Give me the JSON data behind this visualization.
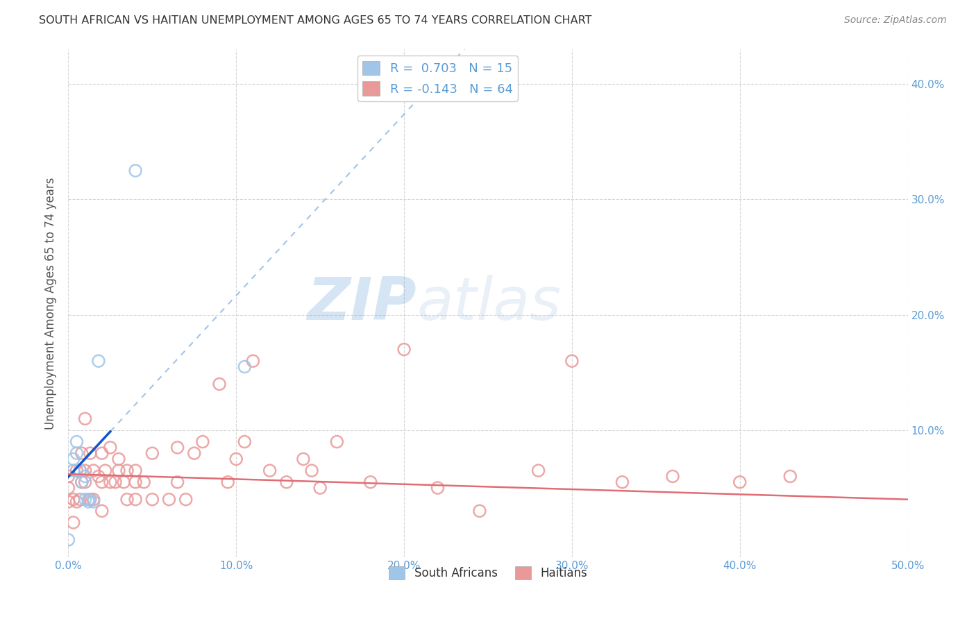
{
  "title": "SOUTH AFRICAN VS HAITIAN UNEMPLOYMENT AMONG AGES 65 TO 74 YEARS CORRELATION CHART",
  "source": "Source: ZipAtlas.com",
  "ylabel": "Unemployment Among Ages 65 to 74 years",
  "xlim": [
    0.0,
    0.5
  ],
  "ylim": [
    -0.01,
    0.43
  ],
  "xticks": [
    0.0,
    0.1,
    0.2,
    0.3,
    0.4,
    0.5
  ],
  "yticks": [
    0.1,
    0.2,
    0.3,
    0.4
  ],
  "xtick_labels": [
    "0.0%",
    "10.0%",
    "20.0%",
    "30.0%",
    "40.0%",
    "50.0%"
  ],
  "ytick_labels_right": [
    "10.0%",
    "20.0%",
    "30.0%",
    "40.0%"
  ],
  "tick_color": "#5b9bd5",
  "sa_color": "#9fc5e8",
  "ha_color": "#ea9999",
  "sa_line_color": "#1155cc",
  "ha_line_color": "#e06c75",
  "sa_dash_color": "#9fc5e8",
  "legend_sa_label": "R =  0.703   N = 15",
  "legend_ha_label": "R = -0.143   N = 64",
  "sa_points_x": [
    0.0,
    0.003,
    0.003,
    0.005,
    0.005,
    0.007,
    0.008,
    0.01,
    0.01,
    0.012,
    0.012,
    0.015,
    0.018,
    0.04,
    0.105
  ],
  "sa_points_y": [
    0.005,
    0.065,
    0.075,
    0.08,
    0.09,
    0.065,
    0.055,
    0.06,
    0.04,
    0.038,
    0.04,
    0.038,
    0.16,
    0.325,
    0.155
  ],
  "ha_points_x": [
    0.0,
    0.0,
    0.0,
    0.003,
    0.003,
    0.005,
    0.005,
    0.007,
    0.007,
    0.008,
    0.008,
    0.01,
    0.01,
    0.01,
    0.013,
    0.013,
    0.015,
    0.015,
    0.018,
    0.02,
    0.02,
    0.02,
    0.022,
    0.025,
    0.025,
    0.028,
    0.03,
    0.03,
    0.033,
    0.035,
    0.035,
    0.04,
    0.04,
    0.04,
    0.045,
    0.05,
    0.05,
    0.06,
    0.065,
    0.065,
    0.07,
    0.075,
    0.08,
    0.09,
    0.095,
    0.1,
    0.105,
    0.11,
    0.12,
    0.13,
    0.14,
    0.145,
    0.15,
    0.16,
    0.18,
    0.2,
    0.22,
    0.245,
    0.28,
    0.3,
    0.33,
    0.36,
    0.4,
    0.43
  ],
  "ha_points_y": [
    0.038,
    0.05,
    0.06,
    0.02,
    0.04,
    0.038,
    0.065,
    0.04,
    0.065,
    0.055,
    0.08,
    0.055,
    0.065,
    0.11,
    0.04,
    0.08,
    0.04,
    0.065,
    0.06,
    0.03,
    0.055,
    0.08,
    0.065,
    0.055,
    0.085,
    0.055,
    0.065,
    0.075,
    0.055,
    0.04,
    0.065,
    0.04,
    0.055,
    0.065,
    0.055,
    0.08,
    0.04,
    0.04,
    0.055,
    0.085,
    0.04,
    0.08,
    0.09,
    0.14,
    0.055,
    0.075,
    0.09,
    0.16,
    0.065,
    0.055,
    0.075,
    0.065,
    0.05,
    0.09,
    0.055,
    0.17,
    0.05,
    0.03,
    0.065,
    0.16,
    0.055,
    0.06,
    0.055,
    0.06
  ],
  "watermark_zip": "ZIP",
  "watermark_atlas": "atlas",
  "background_color": "#ffffff",
  "grid_color": "#cccccc",
  "sa_line_x_start": 0.0,
  "sa_line_x_solid_end": 0.025,
  "sa_line_x_dash_end": 0.32,
  "ha_line_x_start": 0.0,
  "ha_line_x_end": 0.5,
  "ha_line_y_start": 0.062,
  "ha_line_y_end": 0.04
}
